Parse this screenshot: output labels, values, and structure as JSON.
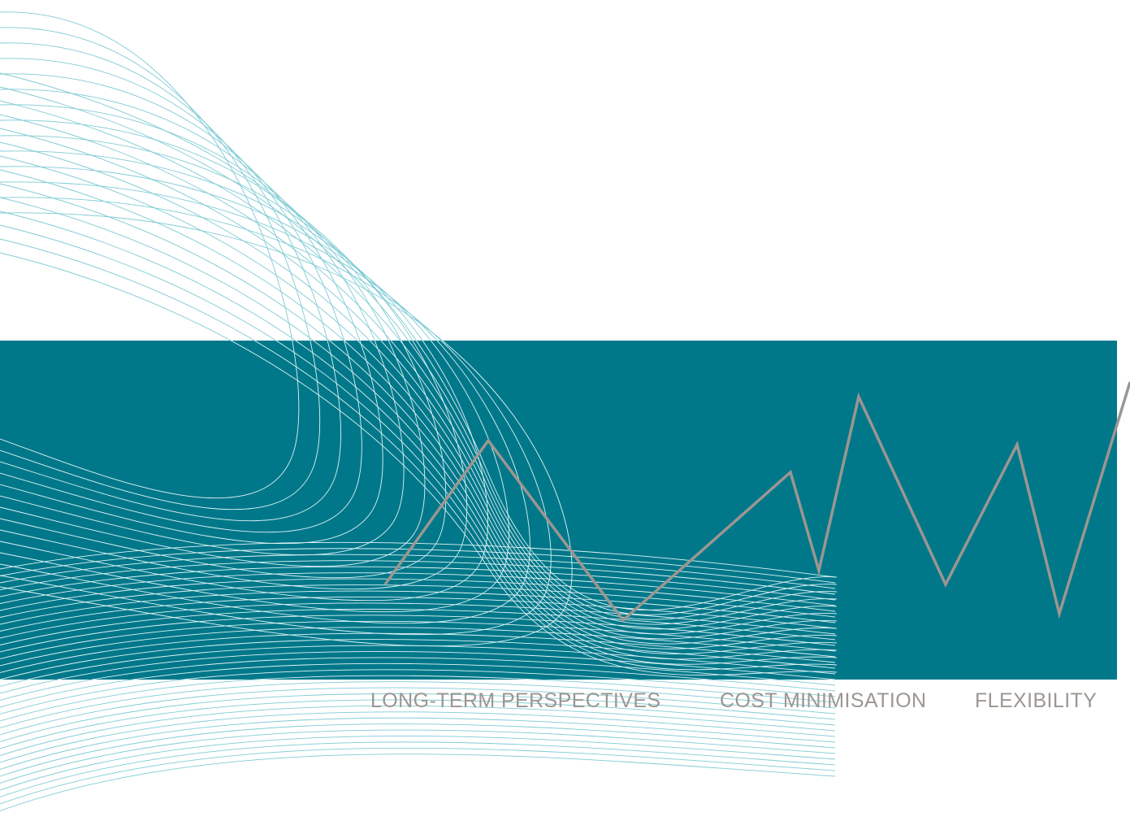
{
  "colors": {
    "background": "#ffffff",
    "band": "#00788a",
    "curve_on_white": "#7fcbd4",
    "curve_on_band": "#dff3f5",
    "zigzag": "#9c9691",
    "tagline": "#9c9691"
  },
  "taglines": [
    "LONG-TERM PERSPECTIVES",
    "COST MINIMISATION",
    "FLEXIBILITY"
  ]
}
